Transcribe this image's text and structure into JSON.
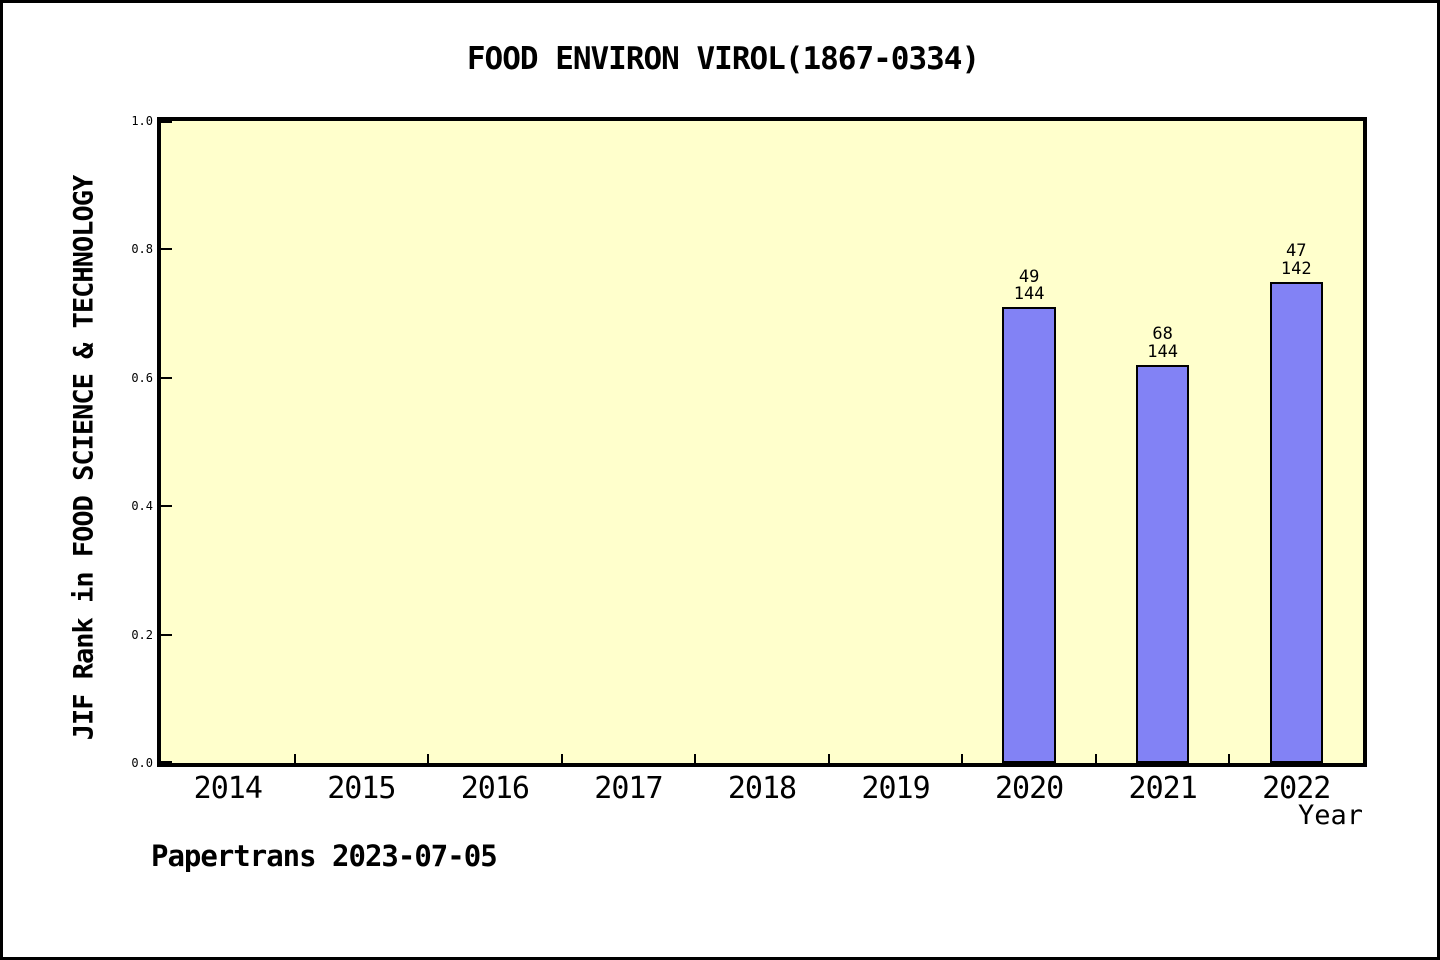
{
  "title": "FOOD ENVIRON VIROL(1867-0334)",
  "footer": "Papertrans 2023-07-05",
  "colors": {
    "plot_background": "#FFFFCC",
    "bar_fill": "#8282F5",
    "bar_border": "#000000",
    "axis": "#000000",
    "page_background": "#FFFFFF"
  },
  "chart_data": {
    "type": "bar",
    "title": "FOOD ENVIRON VIROL(1867-0334)",
    "xlabel": "Year",
    "ylabel": "JIF Rank in FOOD SCIENCE & TECHNOLOGY",
    "categories": [
      "2014",
      "2015",
      "2016",
      "2017",
      "2018",
      "2019",
      "2020",
      "2021",
      "2022"
    ],
    "values": [
      null,
      null,
      null,
      null,
      null,
      null,
      0.71,
      0.62,
      0.75
    ],
    "bar_labels": [
      null,
      null,
      null,
      null,
      null,
      null,
      [
        "49",
        "144"
      ],
      [
        "68",
        "144"
      ],
      [
        "47",
        "142"
      ]
    ],
    "ytick_labels": [
      "0.0",
      "0.2",
      "0.4",
      "0.6",
      "0.8",
      "1.0"
    ],
    "ylim": [
      0.0,
      1.0
    ],
    "grid": "off",
    "legend": "none",
    "bar_width_fraction": 0.4
  }
}
